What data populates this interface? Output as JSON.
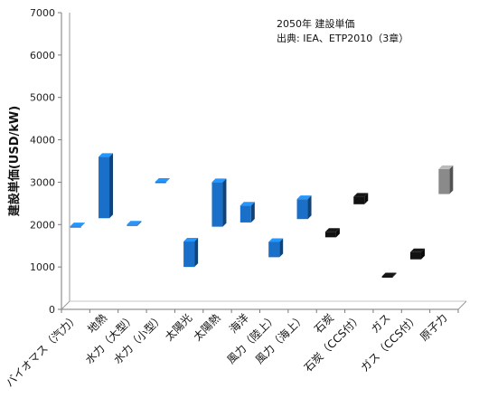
{
  "chart_data": {
    "type": "bar",
    "subtype": "floating-range-3d",
    "title": "",
    "annotation_lines": [
      "2050年 建設単価",
      "出典: IEA、ETP2010（3章）"
    ],
    "xlabel": "",
    "ylabel": "建設単価(USD/kW)",
    "ylim": [
      0,
      7000
    ],
    "yticks": [
      0,
      1000,
      2000,
      3000,
      4000,
      5000,
      6000,
      7000
    ],
    "grid": false,
    "legend": "none",
    "categories": [
      "バイオマス（汽力）",
      "地熱",
      "水力（大型）",
      "水力（小型）",
      "太陽光",
      "太陽熱",
      "海洋",
      "風力（陸上）",
      "風力（海上）",
      "石炭",
      "石炭（CCS付）",
      "ガス",
      "ガス（CCS付）",
      "原子力"
    ],
    "series": [
      {
        "low": [
          1950,
          2150,
          1980,
          3000,
          1000,
          1950,
          2050,
          1230,
          2130,
          1700,
          2480,
          760,
          1180,
          2720
        ],
        "high": [
          1960,
          3600,
          2000,
          3010,
          1600,
          3000,
          2450,
          1590,
          2600,
          1830,
          2660,
          780,
          1350,
          3310
        ]
      }
    ],
    "colors": [
      "#1a6fc9",
      "#1a6fc9",
      "#1a6fc9",
      "#1a6fc9",
      "#1a6fc9",
      "#1a6fc9",
      "#1a6fc9",
      "#1a6fc9",
      "#1a6fc9",
      "#111111",
      "#111111",
      "#111111",
      "#111111",
      "#8a8a8a"
    ]
  }
}
